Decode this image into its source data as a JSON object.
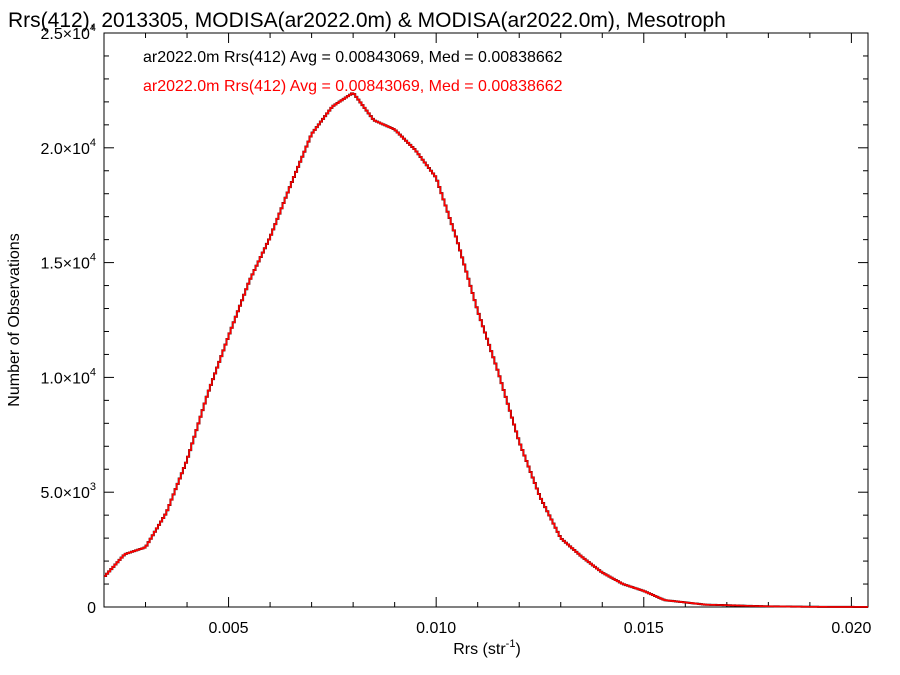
{
  "chart_data": {
    "type": "line",
    "title": "Rrs(412), 2013305, MODISA(ar2022.0m) & MODISA(ar2022.0m), Mesotroph",
    "xlabel": "Rrs (str",
    "xlabel_sup": "-1",
    "xlabel_close": ")",
    "ylabel": "Number of Observations",
    "xlim": [
      0.002,
      0.0204
    ],
    "ylim": [
      0,
      25000
    ],
    "xticks": [
      {
        "value": 0.005,
        "label": "0.005"
      },
      {
        "value": 0.01,
        "label": "0.010"
      },
      {
        "value": 0.015,
        "label": "0.015"
      },
      {
        "value": 0.02,
        "label": "0.020"
      }
    ],
    "yticks": [
      {
        "value": 0,
        "mant": "0",
        "exp": ""
      },
      {
        "value": 5000,
        "mant": "5.0×10",
        "exp": "3"
      },
      {
        "value": 10000,
        "mant": "1.0×10",
        "exp": "4"
      },
      {
        "value": 15000,
        "mant": "1.5×10",
        "exp": "4"
      },
      {
        "value": 20000,
        "mant": "2.0×10",
        "exp": "4"
      },
      {
        "value": 25000,
        "mant": "2.5×10",
        "exp": "4"
      }
    ],
    "legend_placement": "top-left",
    "series": [
      {
        "name": "ar2022.0m Rrs(412) Avg = 0.00843069, Med = 0.00838662",
        "color": "#000000"
      },
      {
        "name": "ar2022.0m Rrs(412) Avg = 0.00843069, Med = 0.00838662",
        "color": "#ff0000"
      }
    ],
    "x": [
      0.002,
      0.0025,
      0.003,
      0.0035,
      0.004,
      0.0045,
      0.005,
      0.0055,
      0.006,
      0.0065,
      0.007,
      0.0075,
      0.008,
      0.0085,
      0.009,
      0.0095,
      0.01,
      0.0105,
      0.011,
      0.0115,
      0.012,
      0.0125,
      0.013,
      0.0135,
      0.014,
      0.0145,
      0.015,
      0.0155,
      0.016,
      0.0165,
      0.017,
      0.0175,
      0.018,
      0.0185,
      0.019,
      0.0195,
      0.02,
      0.0204
    ],
    "values": [
      1300,
      2300,
      2600,
      4100,
      6400,
      9300,
      11800,
      14200,
      16100,
      18400,
      20600,
      21800,
      22400,
      21200,
      20800,
      19900,
      18700,
      16000,
      12900,
      10200,
      7200,
      4800,
      3000,
      2200,
      1500,
      1000,
      700,
      300,
      200,
      100,
      80,
      50,
      30,
      20,
      10,
      5,
      3,
      2
    ]
  }
}
